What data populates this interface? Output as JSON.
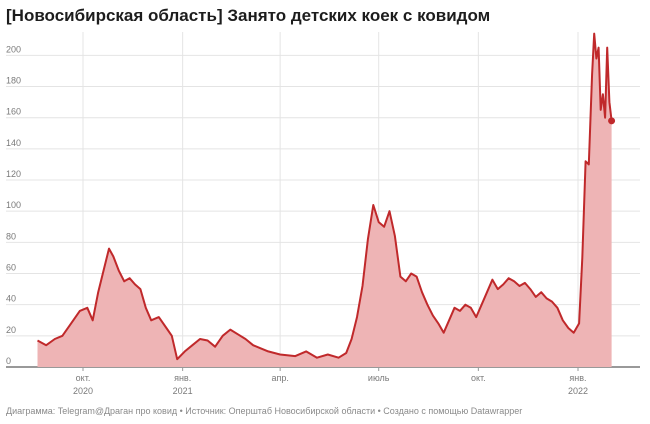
{
  "title": "[Новосибирская область] Занято детских коек с ковидом",
  "footer": {
    "text": "Диаграмма: Telegram@Драган про ковид • Источник: Оперштаб Новосибирской области • Создано с помощью Datawrapper"
  },
  "colors": {
    "line": "#c0292b",
    "area": "#eeb4b5",
    "grid": "#e4e4e4",
    "baseline": "#333333"
  },
  "chart_data": {
    "type": "area",
    "title": "[Новосибирская область] Занято детских коек с ковидом",
    "xlabel": "",
    "ylabel": "",
    "ylim": [
      0,
      215
    ],
    "x_range": [
      "2020-08-20",
      "2022-02-23"
    ],
    "y_ticks": [
      0,
      20,
      40,
      60,
      80,
      100,
      120,
      140,
      160,
      180,
      200
    ],
    "x_ticks": [
      {
        "date": "2020-10-01",
        "label": "окт.",
        "sublabel": "2020"
      },
      {
        "date": "2021-01-01",
        "label": "янв.",
        "sublabel": "2021"
      },
      {
        "date": "2021-04-01",
        "label": "апр.",
        "sublabel": ""
      },
      {
        "date": "2021-07-01",
        "label": "июль",
        "sublabel": ""
      },
      {
        "date": "2021-10-01",
        "label": "окт.",
        "sublabel": ""
      },
      {
        "date": "2022-01-01",
        "label": "янв.",
        "sublabel": "2022"
      }
    ],
    "grid": true,
    "series": [
      {
        "points": [
          [
            "2020-08-20",
            17
          ],
          [
            "2020-08-28",
            14
          ],
          [
            "2020-09-05",
            18
          ],
          [
            "2020-09-12",
            20
          ],
          [
            "2020-09-20",
            28
          ],
          [
            "2020-09-28",
            36
          ],
          [
            "2020-10-05",
            38
          ],
          [
            "2020-10-10",
            30
          ],
          [
            "2020-10-15",
            48
          ],
          [
            "2020-10-20",
            62
          ],
          [
            "2020-10-25",
            76
          ],
          [
            "2020-10-29",
            71
          ],
          [
            "2020-11-03",
            62
          ],
          [
            "2020-11-08",
            55
          ],
          [
            "2020-11-13",
            57
          ],
          [
            "2020-11-18",
            53
          ],
          [
            "2020-11-23",
            50
          ],
          [
            "2020-11-28",
            38
          ],
          [
            "2020-12-03",
            30
          ],
          [
            "2020-12-10",
            32
          ],
          [
            "2020-12-17",
            25
          ],
          [
            "2020-12-22",
            20
          ],
          [
            "2020-12-27",
            5
          ],
          [
            "2021-01-03",
            10
          ],
          [
            "2021-01-10",
            14
          ],
          [
            "2021-01-17",
            18
          ],
          [
            "2021-01-24",
            17
          ],
          [
            "2021-01-31",
            13
          ],
          [
            "2021-02-07",
            20
          ],
          [
            "2021-02-14",
            24
          ],
          [
            "2021-02-21",
            21
          ],
          [
            "2021-02-28",
            18
          ],
          [
            "2021-03-07",
            14
          ],
          [
            "2021-03-14",
            12
          ],
          [
            "2021-03-21",
            10
          ],
          [
            "2021-04-01",
            8
          ],
          [
            "2021-04-15",
            7
          ],
          [
            "2021-04-25",
            10
          ],
          [
            "2021-05-05",
            6
          ],
          [
            "2021-05-15",
            8
          ],
          [
            "2021-05-25",
            6
          ],
          [
            "2021-06-01",
            9
          ],
          [
            "2021-06-06",
            18
          ],
          [
            "2021-06-11",
            32
          ],
          [
            "2021-06-16",
            52
          ],
          [
            "2021-06-21",
            82
          ],
          [
            "2021-06-26",
            104
          ],
          [
            "2021-07-01",
            93
          ],
          [
            "2021-07-06",
            90
          ],
          [
            "2021-07-11",
            100
          ],
          [
            "2021-07-16",
            84
          ],
          [
            "2021-07-21",
            58
          ],
          [
            "2021-07-26",
            55
          ],
          [
            "2021-07-31",
            60
          ],
          [
            "2021-08-05",
            58
          ],
          [
            "2021-08-10",
            48
          ],
          [
            "2021-08-15",
            40
          ],
          [
            "2021-08-20",
            33
          ],
          [
            "2021-08-25",
            28
          ],
          [
            "2021-08-30",
            22
          ],
          [
            "2021-09-04",
            30
          ],
          [
            "2021-09-09",
            38
          ],
          [
            "2021-09-14",
            36
          ],
          [
            "2021-09-19",
            40
          ],
          [
            "2021-09-24",
            38
          ],
          [
            "2021-09-29",
            32
          ],
          [
            "2021-10-04",
            40
          ],
          [
            "2021-10-09",
            48
          ],
          [
            "2021-10-14",
            56
          ],
          [
            "2021-10-19",
            50
          ],
          [
            "2021-10-24",
            53
          ],
          [
            "2021-10-29",
            57
          ],
          [
            "2021-11-03",
            55
          ],
          [
            "2021-11-08",
            52
          ],
          [
            "2021-11-13",
            54
          ],
          [
            "2021-11-18",
            50
          ],
          [
            "2021-11-23",
            45
          ],
          [
            "2021-11-28",
            48
          ],
          [
            "2021-12-03",
            44
          ],
          [
            "2021-12-08",
            42
          ],
          [
            "2021-12-13",
            38
          ],
          [
            "2021-12-18",
            30
          ],
          [
            "2021-12-23",
            25
          ],
          [
            "2021-12-28",
            22
          ],
          [
            "2022-01-02",
            28
          ],
          [
            "2022-01-05",
            70
          ],
          [
            "2022-01-08",
            132
          ],
          [
            "2022-01-11",
            130
          ],
          [
            "2022-01-14",
            188
          ],
          [
            "2022-01-16",
            214
          ],
          [
            "2022-01-18",
            198
          ],
          [
            "2022-01-20",
            205
          ],
          [
            "2022-01-22",
            165
          ],
          [
            "2022-01-24",
            175
          ],
          [
            "2022-01-26",
            160
          ],
          [
            "2022-01-28",
            205
          ],
          [
            "2022-01-30",
            170
          ],
          [
            "2022-02-01",
            158
          ]
        ]
      }
    ]
  }
}
